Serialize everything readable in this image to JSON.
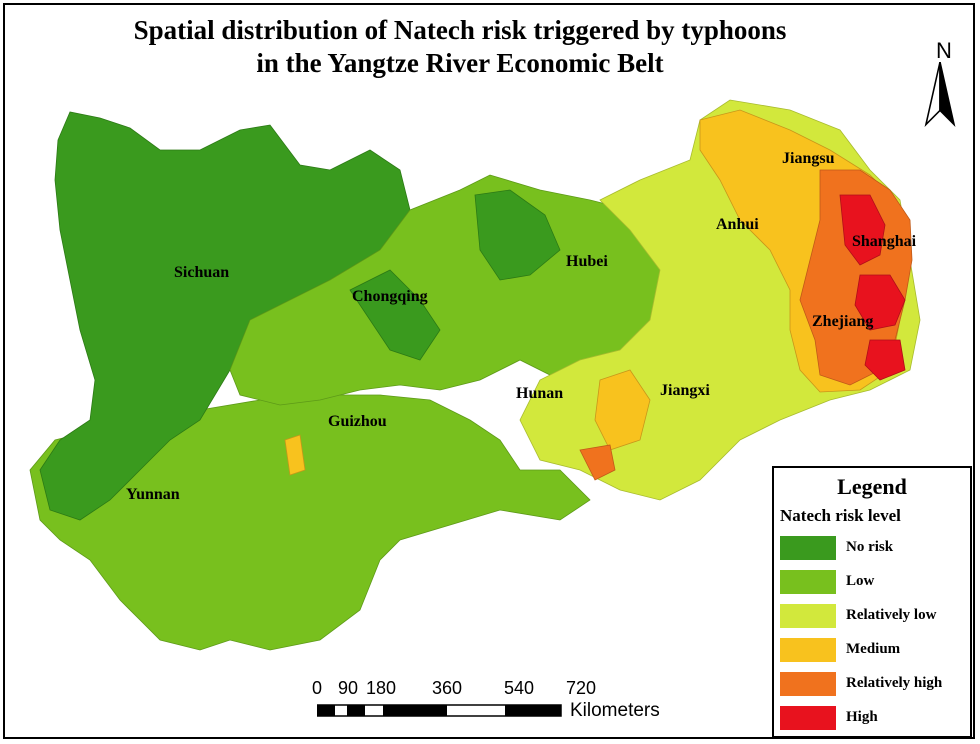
{
  "title": {
    "line1": "Spatial distribution of Natech risk triggered by typhoons",
    "line2": "in the Yangtze River Economic Belt"
  },
  "north_arrow": {
    "label": "N",
    "icon": "north-arrow-icon"
  },
  "regions": [
    {
      "id": "sichuan",
      "label": "Sichuan"
    },
    {
      "id": "chongqing",
      "label": "Chongqing"
    },
    {
      "id": "guizhou",
      "label": "Guizhou"
    },
    {
      "id": "yunnan",
      "label": "Yunnan"
    },
    {
      "id": "hubei",
      "label": "Hubei"
    },
    {
      "id": "hunan",
      "label": "Hunan"
    },
    {
      "id": "jiangxi",
      "label": "Jiangxi"
    },
    {
      "id": "anhui",
      "label": "Anhui"
    },
    {
      "id": "jiangsu",
      "label": "Jiangsu"
    },
    {
      "id": "shanghai",
      "label": "Shanghai"
    },
    {
      "id": "zhejiang",
      "label": "Zhejiang"
    }
  ],
  "legend": {
    "title": "Legend",
    "subtitle": "Natech risk level",
    "items": [
      {
        "label": "No risk",
        "color": "#3a9a1e"
      },
      {
        "label": "Low",
        "color": "#78c01e"
      },
      {
        "label": "Relatively low",
        "color": "#d2e83c"
      },
      {
        "label": "Medium",
        "color": "#f8c21e"
      },
      {
        "label": "Relatively high",
        "color": "#f0721e"
      },
      {
        "label": "High",
        "color": "#e8121e"
      }
    ]
  },
  "scale_bar": {
    "ticks": [
      "0",
      "90",
      "180",
      "360",
      "540",
      "720"
    ],
    "units": "Kilometers"
  }
}
